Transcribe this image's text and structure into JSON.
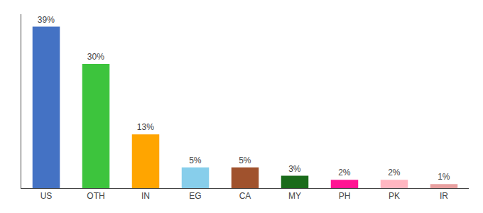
{
  "chart_data": {
    "type": "bar",
    "categories": [
      "US",
      "OTH",
      "IN",
      "EG",
      "CA",
      "MY",
      "PH",
      "PK",
      "IR"
    ],
    "values": [
      39,
      30,
      13,
      5,
      5,
      3,
      2,
      2,
      1
    ],
    "value_labels": [
      "39%",
      "30%",
      "13%",
      "5%",
      "5%",
      "3%",
      "2%",
      "2%",
      "1%"
    ],
    "colors": [
      "#4472C4",
      "#3DC43D",
      "#FFA500",
      "#87CEEB",
      "#A0522D",
      "#1A6B1A",
      "#FF1493",
      "#FFB6C1",
      "#E8A0A0"
    ],
    "ylim": [
      0,
      42
    ],
    "data_labels": true,
    "tick_labels": "x",
    "grid": false
  }
}
